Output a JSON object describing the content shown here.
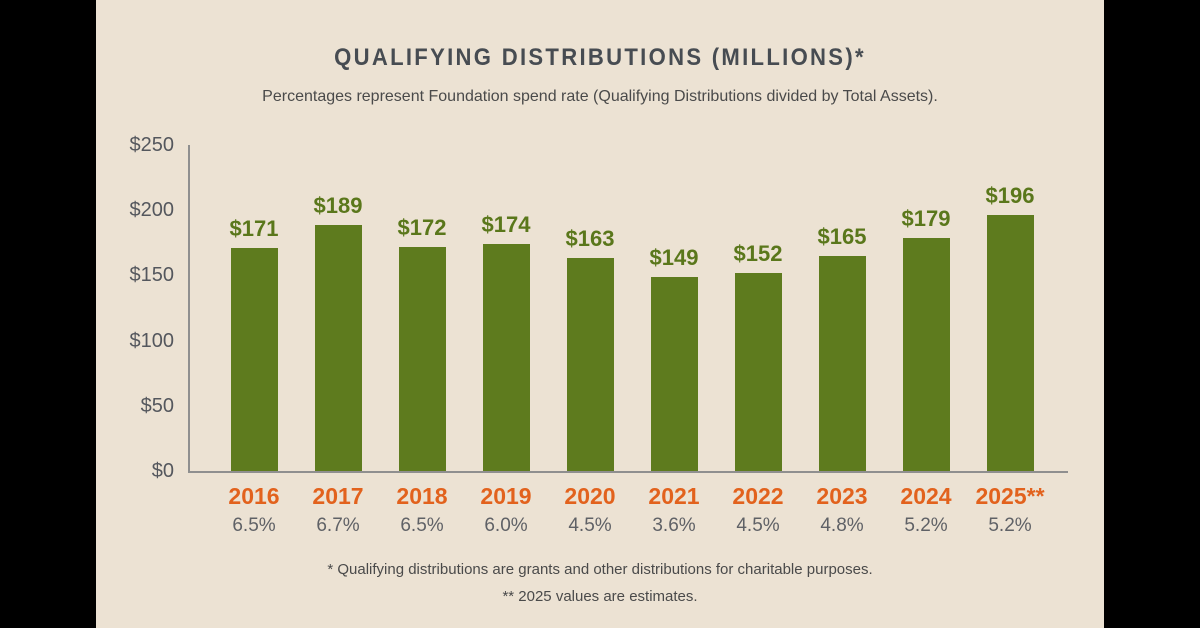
{
  "page": {
    "background_color": "#000000",
    "panel_background_color": "#ECE2D3"
  },
  "header": {
    "title": "QUALIFYING DISTRIBUTIONS (MILLIONS)*",
    "subtitle": "Percentages represent Foundation spend rate (Qualifying Distributions divided by Total Assets)."
  },
  "chart_data": {
    "type": "bar",
    "title": "QUALIFYING DISTRIBUTIONS (MILLIONS)*",
    "subtitle": "Percentages represent Foundation spend rate (Qualifying Distributions divided by Total Assets).",
    "categories": [
      "2016",
      "2017",
      "2018",
      "2019",
      "2020",
      "2021",
      "2022",
      "2023",
      "2024",
      "2025**"
    ],
    "values": [
      171,
      189,
      172,
      174,
      163,
      149,
      152,
      165,
      179,
      196
    ],
    "value_labels": [
      "$171",
      "$189",
      "$172",
      "$174",
      "$163",
      "$149",
      "$152",
      "$165",
      "$179",
      "$196"
    ],
    "spend_rates": [
      "6.5%",
      "6.7%",
      "6.5%",
      "6.0%",
      "4.5%",
      "3.6%",
      "4.5%",
      "4.8%",
      "5.2%",
      "5.2%"
    ],
    "xlabel": "",
    "ylabel": "",
    "ylim": [
      0,
      250
    ],
    "y_ticks": [
      "$0",
      "$50",
      "$100",
      "$150",
      "$200",
      "$250"
    ],
    "y_tick_values": [
      0,
      50,
      100,
      150,
      200,
      250
    ],
    "grid": false,
    "legend": "none",
    "bar_color": "#5E7B1E",
    "value_label_color": "#5A771B",
    "category_color": "#E2621D",
    "rate_color": "#5F6166",
    "axis_color": "#8F8F8F",
    "tick_label_color": "#54575D"
  },
  "footnotes": {
    "line1": "* Qualifying distributions are grants and other distributions for charitable purposes.",
    "line2": "** 2025 values are estimates."
  }
}
